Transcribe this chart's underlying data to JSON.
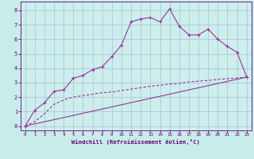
{
  "xlabel": "Windchill (Refroidissement éolien,°C)",
  "bg_color": "#c8ecea",
  "plot_bg_color": "#cceeed",
  "line_color": "#993399",
  "grid_color": "#aabbd0",
  "spine_color": "#660077",
  "tick_color": "#660077",
  "label_color": "#660077",
  "xlim_min": -0.5,
  "xlim_max": 23.5,
  "ylim_min": -0.3,
  "ylim_max": 8.6,
  "xticks": [
    0,
    1,
    2,
    3,
    4,
    5,
    6,
    7,
    8,
    9,
    10,
    11,
    12,
    13,
    14,
    15,
    16,
    17,
    18,
    19,
    20,
    21,
    22,
    23
  ],
  "yticks": [
    0,
    1,
    2,
    3,
    4,
    5,
    6,
    7,
    8
  ],
  "line1_x": [
    0,
    1,
    2,
    3,
    4,
    5,
    6,
    7,
    8,
    9,
    10,
    11,
    12,
    13,
    14,
    15,
    16,
    17,
    18,
    19,
    20,
    21,
    22,
    23
  ],
  "line1_y": [
    0.0,
    1.1,
    1.6,
    2.4,
    2.5,
    3.3,
    3.5,
    3.9,
    4.1,
    4.8,
    5.6,
    7.2,
    7.4,
    7.5,
    7.2,
    8.1,
    6.9,
    6.3,
    6.3,
    6.7,
    6.0,
    5.5,
    5.1,
    3.4
  ],
  "line2_x": [
    0,
    1,
    2,
    3,
    4,
    5,
    6,
    7,
    8,
    9,
    10,
    11,
    12,
    13,
    14,
    15,
    16,
    17,
    18,
    19,
    20,
    21,
    22,
    23
  ],
  "line2_y": [
    0.0,
    0.3,
    0.85,
    1.5,
    1.8,
    2.0,
    2.1,
    2.2,
    2.3,
    2.35,
    2.45,
    2.55,
    2.65,
    2.75,
    2.82,
    2.9,
    2.95,
    3.05,
    3.1,
    3.15,
    3.22,
    3.27,
    3.32,
    3.38
  ],
  "line3_x": [
    0,
    23
  ],
  "line3_y": [
    0.0,
    3.38
  ]
}
